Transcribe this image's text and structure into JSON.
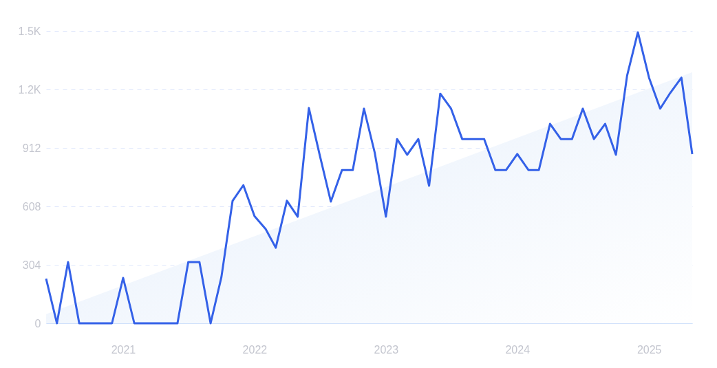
{
  "chart_data": {
    "type": "line",
    "x": [
      "2020-06",
      "2020-07",
      "2020-08",
      "2020-09",
      "2020-10",
      "2020-11",
      "2020-12",
      "2021-01",
      "2021-02",
      "2021-03",
      "2021-04",
      "2021-05",
      "2021-06",
      "2021-07",
      "2021-08",
      "2021-09",
      "2021-10",
      "2021-11",
      "2021-12",
      "2022-01",
      "2022-02",
      "2022-03",
      "2022-04",
      "2022-05",
      "2022-06",
      "2022-07",
      "2022-08",
      "2022-09",
      "2022-10",
      "2022-11",
      "2022-12",
      "2023-01",
      "2023-02",
      "2023-03",
      "2023-04",
      "2023-05",
      "2023-06",
      "2023-07",
      "2023-08",
      "2023-09",
      "2023-10",
      "2023-11",
      "2023-12",
      "2024-01",
      "2024-02",
      "2024-03",
      "2024-04",
      "2024-05",
      "2024-06",
      "2024-07",
      "2024-08",
      "2024-09",
      "2024-10",
      "2024-11",
      "2024-12",
      "2025-01",
      "2025-02",
      "2025-03",
      "2025-04",
      "2025-05"
    ],
    "series": [
      {
        "type": "area",
        "color": "#e4eefb",
        "x": [
          "2020-06",
          "2025-05"
        ],
        "values": [
          47,
          1305
        ]
      },
      {
        "color": "#3461e8",
        "values": [
          232,
          0,
          318,
          0,
          0,
          0,
          0,
          236,
          0,
          0,
          0,
          0,
          0,
          318,
          318,
          0,
          240,
          636,
          718,
          557,
          490,
          393,
          637,
          554,
          1119,
          876,
          633,
          797,
          797,
          1116,
          887,
          554,
          958,
          876,
          958,
          715,
          1194,
          1116,
          958,
          958,
          958,
          797,
          797,
          880,
          797,
          797,
          1037,
          958,
          958,
          1116,
          958,
          1037,
          876,
          1287,
          1513,
          1277,
          1116,
          1198,
          1277,
          880
        ]
      }
    ],
    "xlim": [
      "2020-06",
      "2025-05"
    ],
    "xticks": [
      "2021",
      "2022",
      "2023",
      "2024",
      "2025"
    ],
    "ylim": [
      0,
      1520
    ],
    "yticks": [
      0,
      304,
      608,
      912,
      {
        "value": 1216,
        "label": "1.2K"
      },
      {
        "value": 1520,
        "label": "1.5K"
      }
    ],
    "grid": "y",
    "legend": false,
    "marker": "none",
    "line_style": "solid"
  }
}
